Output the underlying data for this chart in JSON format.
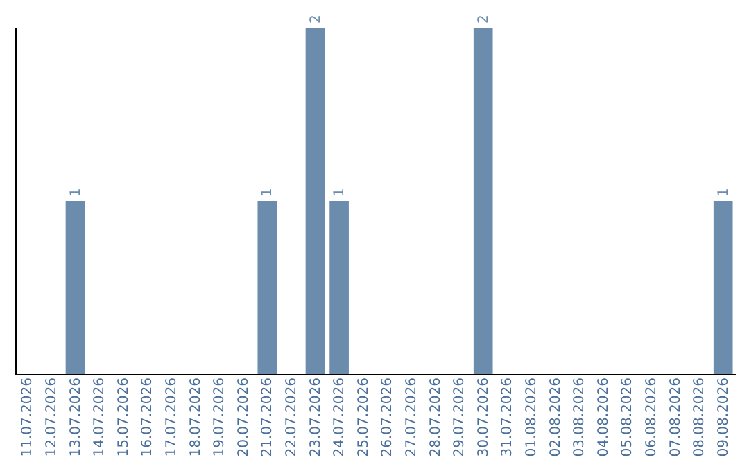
{
  "chart_data": {
    "type": "bar",
    "categories": [
      "11.07.2026",
      "12.07.2026",
      "13.07.2026",
      "14.07.2026",
      "15.07.2026",
      "16.07.2026",
      "17.07.2026",
      "18.07.2026",
      "19.07.2026",
      "20.07.2026",
      "21.07.2026",
      "22.07.2026",
      "23.07.2026",
      "24.07.2026",
      "25.07.2026",
      "26.07.2026",
      "27.07.2026",
      "28.07.2026",
      "29.07.2026",
      "30.07.2026",
      "31.07.2026",
      "01.08.2026",
      "02.08.2026",
      "03.08.2026",
      "04.08.2026",
      "05.08.2026",
      "06.08.2026",
      "07.08.2026",
      "08.08.2026",
      "09.08.2026"
    ],
    "values": [
      0,
      0,
      1,
      0,
      0,
      0,
      0,
      0,
      0,
      0,
      1,
      0,
      2,
      1,
      0,
      0,
      0,
      0,
      0,
      2,
      0,
      0,
      0,
      0,
      0,
      0,
      0,
      0,
      0,
      1
    ],
    "color": "#6b8cac",
    "value_labels": [
      null,
      null,
      "1",
      null,
      null,
      null,
      null,
      null,
      null,
      null,
      "1",
      null,
      "2",
      "1",
      null,
      null,
      null,
      null,
      null,
      "2",
      null,
      null,
      null,
      null,
      null,
      null,
      null,
      null,
      null,
      "1"
    ],
    "grid": false,
    "tick_labels": "x"
  }
}
